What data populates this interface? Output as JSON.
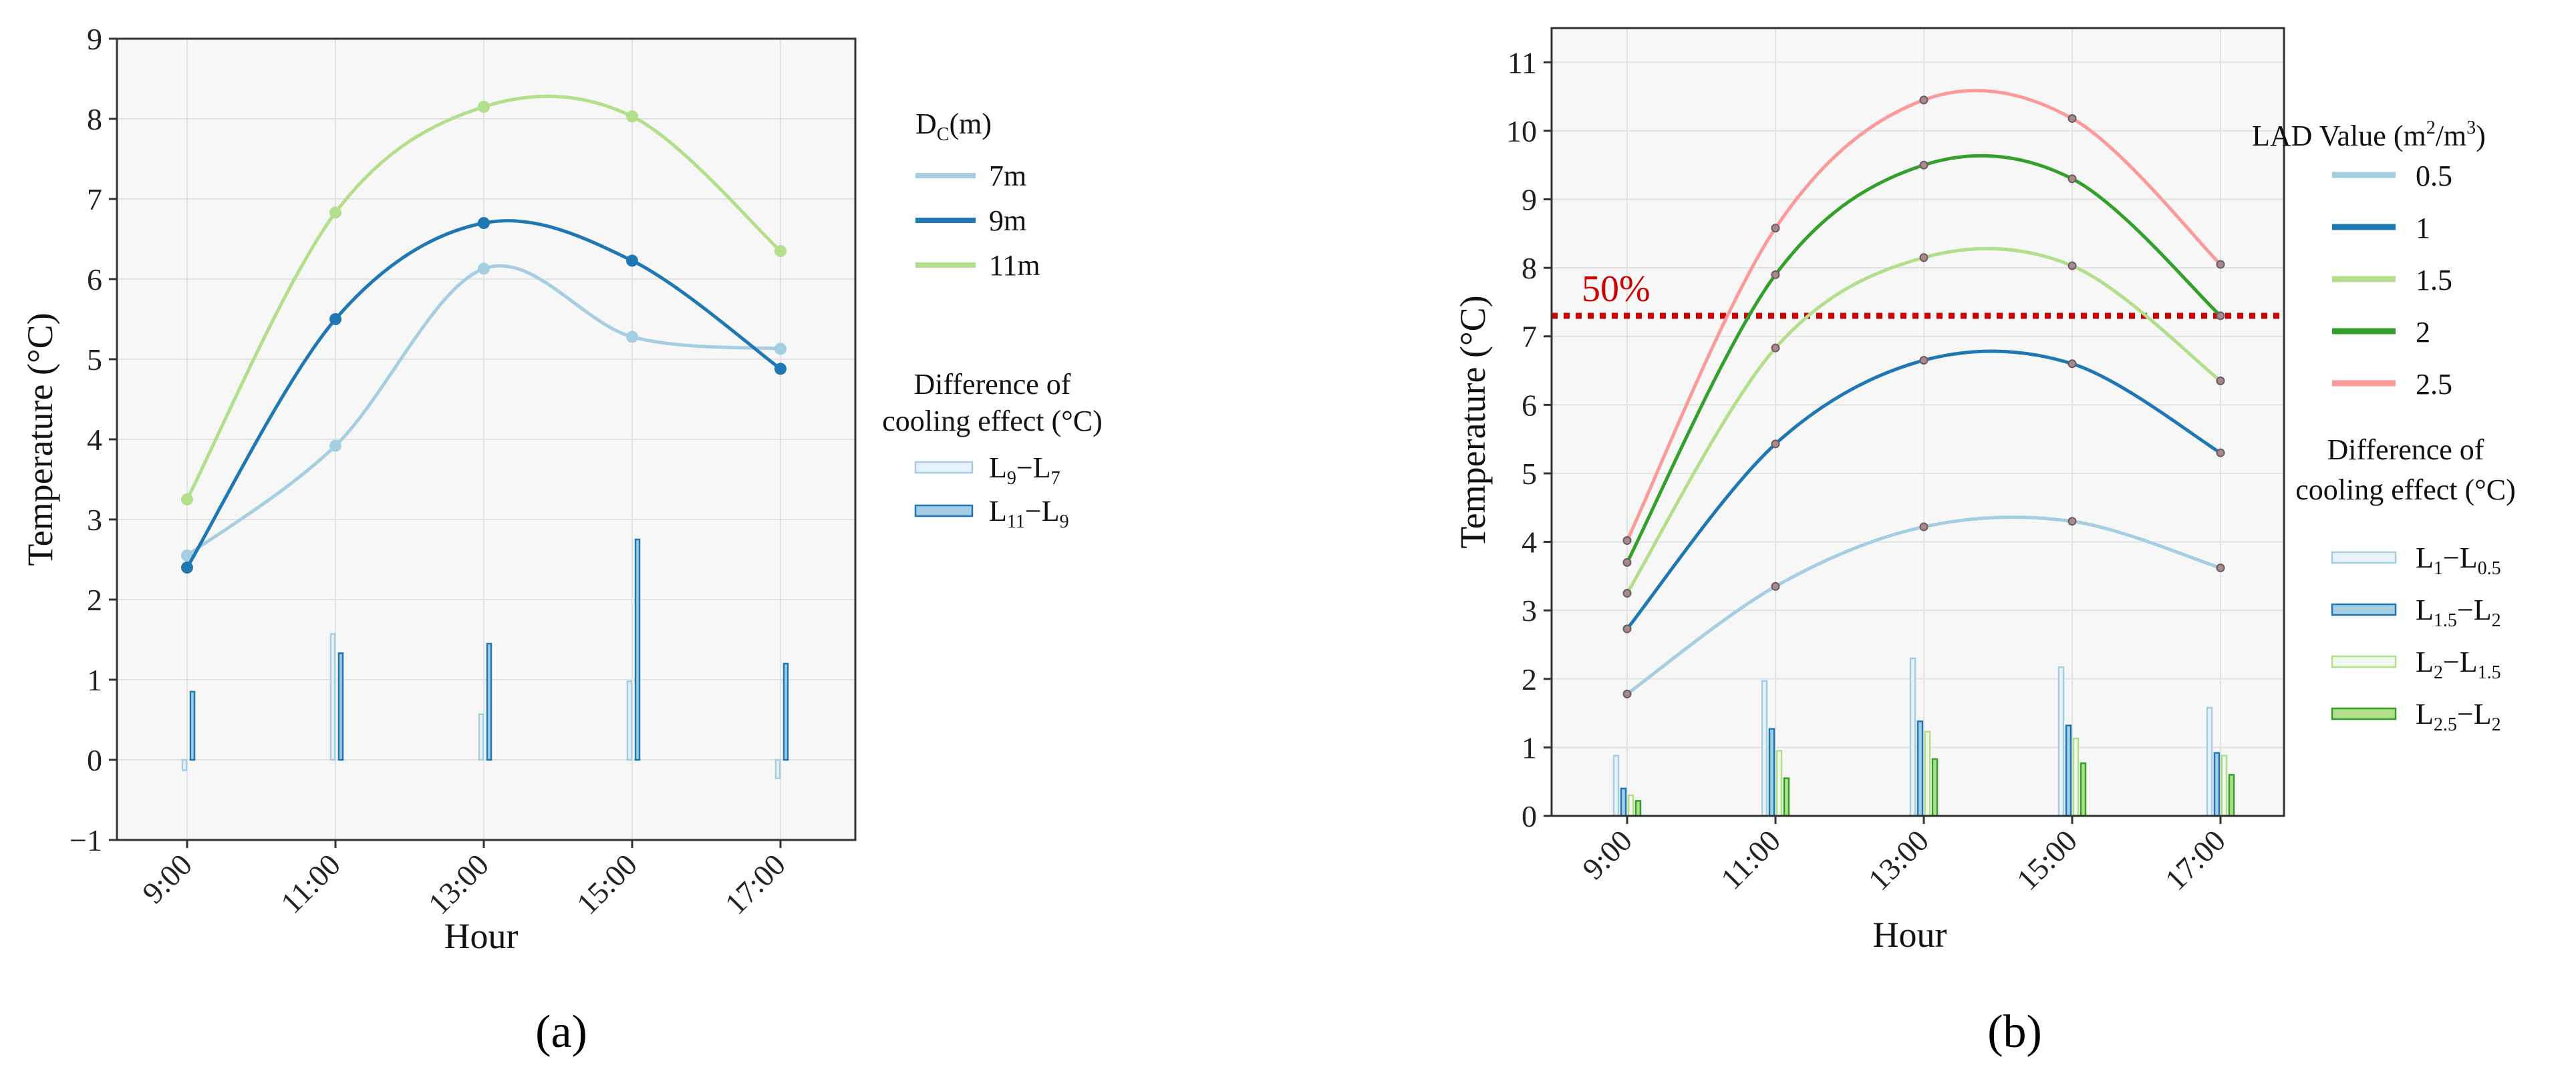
{
  "chart_data": [
    {
      "type": "line",
      "panel_label": "(a)",
      "xlabel": "Hour",
      "ylabel": "Temperature (°C)",
      "categories": [
        "9:00",
        "11:00",
        "13:00",
        "15:00",
        "17:00"
      ],
      "ylim": [
        -1,
        9
      ],
      "yticks": [
        -1,
        0,
        1,
        2,
        3,
        4,
        5,
        6,
        7,
        8,
        9
      ],
      "grid": true,
      "legend_line_title": "D",
      "legend_line_title_sub": "C",
      "legend_line_title_unit": "(m)",
      "series": [
        {
          "name": "7m",
          "color": "#a6cee3",
          "values": [
            2.55,
            3.92,
            6.13,
            5.28,
            5.13
          ]
        },
        {
          "name": "9m",
          "color": "#1f78b4",
          "values": [
            2.4,
            5.5,
            6.7,
            6.23,
            4.88
          ]
        },
        {
          "name": "11m",
          "color": "#b2df8a",
          "values": [
            3.25,
            6.83,
            8.15,
            8.03,
            6.35
          ]
        }
      ],
      "legend_bar_title_1": "Difference of",
      "legend_bar_title_2": "cooling effect (°C)",
      "bar_series": [
        {
          "main": "L",
          "sub_a": "9",
          "sep": "−L",
          "sub_b": "7",
          "fill": "#e8f2fa",
          "stroke": "#a6cee3",
          "values": [
            -0.13,
            1.57,
            0.57,
            0.98,
            -0.23
          ]
        },
        {
          "main": "L",
          "sub_a": "11",
          "sep": "−L",
          "sub_b": "9",
          "fill": "#a6cee3",
          "stroke": "#1f78b4",
          "values": [
            0.85,
            1.33,
            1.45,
            2.75,
            1.2
          ]
        }
      ]
    },
    {
      "type": "line",
      "panel_label": "(b)",
      "xlabel": "Hour",
      "ylabel": "Temperature (°C)",
      "categories": [
        "9:00",
        "11:00",
        "13:00",
        "15:00",
        "17:00"
      ],
      "ylim": [
        0,
        11.5
      ],
      "yticks": [
        0,
        1,
        2,
        3,
        4,
        5,
        6,
        7,
        8,
        9,
        10,
        11
      ],
      "grid": true,
      "reference_line": {
        "value": 7.3,
        "label": "50%",
        "color": "#cc0000"
      },
      "legend_line_title": "LAD Value (m",
      "legend_line_title_sup1": "2",
      "legend_line_title_mid": "/m",
      "legend_line_title_sup2": "3",
      "legend_line_title_end": ")",
      "series": [
        {
          "name": "0.5",
          "color": "#a6cee3",
          "values": [
            1.78,
            3.35,
            4.22,
            4.3,
            3.62
          ]
        },
        {
          "name": "1",
          "color": "#1f78b4",
          "values": [
            2.73,
            5.43,
            6.65,
            6.6,
            5.3
          ]
        },
        {
          "name": "1.5",
          "color": "#b2df8a",
          "values": [
            3.25,
            6.83,
            8.15,
            8.03,
            6.35
          ]
        },
        {
          "name": "2",
          "color": "#33a02c",
          "values": [
            3.7,
            7.9,
            9.5,
            9.3,
            7.3
          ]
        },
        {
          "name": "2.5",
          "color": "#fb9a99",
          "values": [
            4.02,
            8.58,
            10.45,
            10.18,
            8.05
          ]
        }
      ],
      "legend_bar_title_1": "Difference of",
      "legend_bar_title_2": "cooling effect (°C)",
      "bar_series": [
        {
          "main": "L",
          "sub_a": "1",
          "sep": "−L",
          "sub_b": "0.5",
          "fill": "#eaf3fa",
          "stroke": "#a6cee3",
          "values": [
            0.88,
            1.97,
            2.3,
            2.17,
            1.58
          ]
        },
        {
          "main": "L",
          "sub_a": "1.5",
          "sep": "−L",
          "sub_b": "2",
          "fill": "#a6cee3",
          "stroke": "#1f78b4",
          "values": [
            0.4,
            1.27,
            1.38,
            1.32,
            0.92
          ]
        },
        {
          "main": "L",
          "sub_a": "2",
          "sep": "−L",
          "sub_b": "1.5",
          "fill": "#f1f9ea",
          "stroke": "#b2df8a",
          "values": [
            0.3,
            0.95,
            1.23,
            1.13,
            0.88
          ]
        },
        {
          "main": "L",
          "sub_a": "2.5",
          "sep": "−L",
          "sub_b": "2",
          "fill": "#b2df8a",
          "stroke": "#33a02c",
          "values": [
            0.22,
            0.55,
            0.83,
            0.77,
            0.6
          ]
        }
      ]
    }
  ]
}
